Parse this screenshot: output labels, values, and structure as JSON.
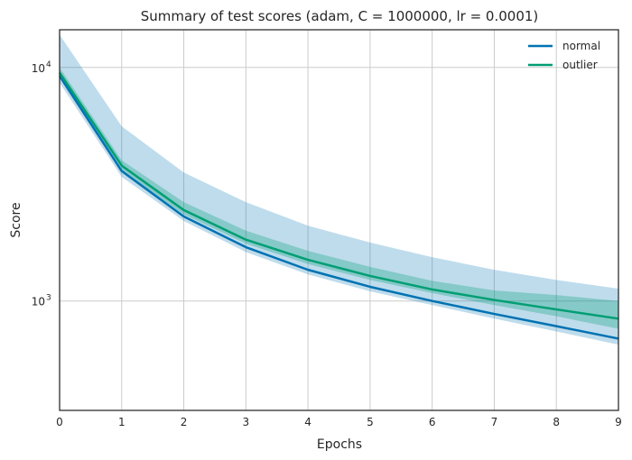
{
  "chart_data": {
    "type": "line",
    "title": "Summary of test scores (adam, C = 1000000, lr = 0.0001)",
    "xlabel": "Epochs",
    "ylabel": "Score",
    "yscale": "log",
    "xlim": [
      0,
      9
    ],
    "ylim": [
      340,
      14500
    ],
    "x": [
      0,
      1,
      2,
      3,
      4,
      5,
      6,
      7,
      8,
      9
    ],
    "xticks": [
      "0",
      "1",
      "2",
      "3",
      "4",
      "5",
      "6",
      "7",
      "8",
      "9"
    ],
    "yticks": [
      {
        "value": 1000,
        "base": "10",
        "exp": "3"
      },
      {
        "value": 10000,
        "base": "10",
        "exp": "4"
      }
    ],
    "grid": true,
    "legend_position": "top-right",
    "series": [
      {
        "name": "normal",
        "color": "#0072b2",
        "values": [
          9200,
          3600,
          2300,
          1700,
          1360,
          1150,
          1000,
          880,
          780,
          690
        ],
        "lower": [
          8600,
          3400,
          2200,
          1620,
          1300,
          1100,
          960,
          840,
          740,
          650
        ],
        "upper": [
          13800,
          5600,
          3550,
          2650,
          2100,
          1780,
          1540,
          1360,
          1230,
          1130
        ]
      },
      {
        "name": "outlier",
        "color": "#009e73",
        "values": [
          9500,
          3800,
          2450,
          1830,
          1500,
          1280,
          1120,
          1010,
          920,
          840
        ],
        "lower": [
          9100,
          3600,
          2350,
          1760,
          1440,
          1230,
          1080,
          960,
          860,
          760
        ],
        "upper": [
          10000,
          4000,
          2650,
          2000,
          1640,
          1400,
          1220,
          1110,
          1060,
          1000
        ]
      }
    ]
  }
}
